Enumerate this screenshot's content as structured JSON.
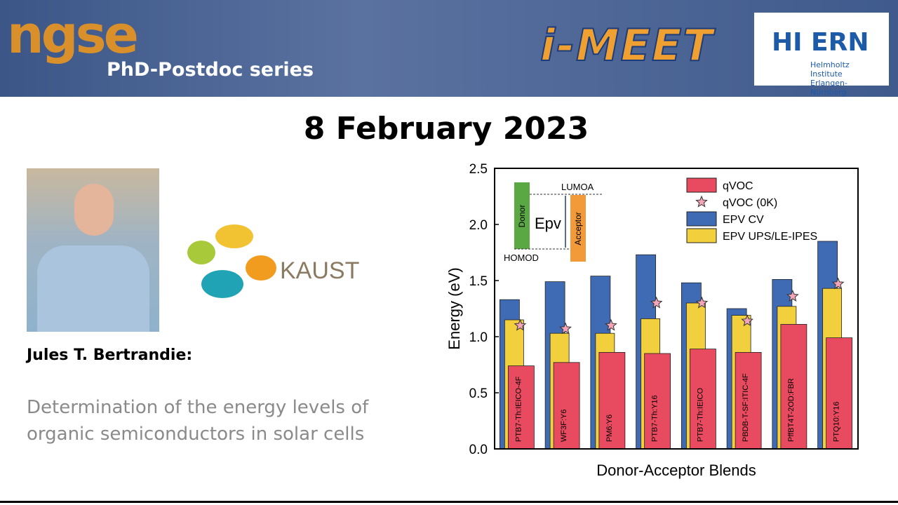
{
  "header": {
    "logo_left": "ngse",
    "series_name": "PhD-Postdoc series",
    "logo_center": "i-MEET",
    "logo_right": "HI ERN",
    "logo_right_sub": "Helmholtz Institute Erlangen-Nürnberg"
  },
  "date": "8 February 2023",
  "speaker": {
    "affiliation": "KAUST",
    "name": "Jules T. Bertrandie:",
    "topic_line1": "Determination of the energy levels of",
    "topic_line2": "organic semiconductors in solar cells"
  },
  "chart_data": {
    "type": "bar",
    "y_label": "Energy (eV)",
    "x_label": "Donor-Acceptor Blends",
    "categories": [
      "PTB7-Th:IEICO-4F",
      "WF3F:Y6",
      "PM6:Y6",
      "PTB7-Th:Y16",
      "PTB7-Th:IEICO",
      "PBDB-T-SF:ITIC-4F",
      "PffBT4T-2OD:FBR",
      "PTQ10:Y16"
    ],
    "series": [
      {
        "name": "qVOC",
        "color": "#e84a5f",
        "values": [
          0.74,
          0.77,
          0.86,
          0.85,
          0.89,
          0.86,
          1.11,
          0.99
        ]
      },
      {
        "name": "qVOC (0K)",
        "color": "#f4a6b8",
        "marker": "star",
        "values": [
          1.1,
          1.07,
          1.1,
          1.3,
          1.3,
          1.14,
          1.36,
          1.47
        ]
      },
      {
        "name": "EPV CV",
        "color": "#3f6bb5",
        "values": [
          1.33,
          1.49,
          1.54,
          1.73,
          1.48,
          1.25,
          1.51,
          1.85
        ]
      },
      {
        "name": "EPV UPS/LE-IPES",
        "color": "#f2cf3c",
        "values": [
          1.15,
          1.03,
          1.03,
          1.16,
          1.3,
          1.19,
          1.27,
          1.43
        ]
      }
    ],
    "ylim": [
      0,
      2.5
    ],
    "yticks": [
      {
        "value": 0,
        "label": "0.0"
      },
      0.5,
      {
        "value": 1,
        "label": "1.0"
      },
      1.5,
      {
        "value": 2,
        "label": "2.0"
      },
      2.5
    ],
    "inset": {
      "lumo": "LUMOA",
      "homo": "HOMOD",
      "donor": "Donor",
      "acceptor": "Acceptor",
      "gap": "Epv"
    }
  }
}
